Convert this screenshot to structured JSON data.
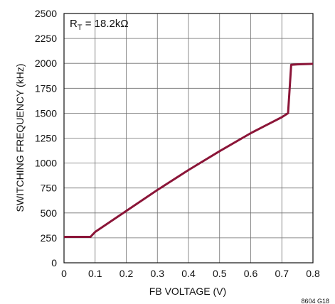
{
  "chart_data": {
    "type": "line",
    "xlabel": "FB VOLTAGE (V)",
    "ylabel": "SWITCHING FREQUENCY (kHz)",
    "xlim": [
      0,
      0.8
    ],
    "ylim": [
      0,
      2500
    ],
    "x_ticks": [
      "0",
      "0.1",
      "0.2",
      "0.3",
      "0.4",
      "0.5",
      "0.6",
      "0.7",
      "0.8"
    ],
    "y_ticks": [
      "0",
      "250",
      "500",
      "750",
      "1000",
      "1250",
      "1500",
      "1750",
      "2000",
      "2250",
      "2500"
    ],
    "grid": true,
    "line_color": "#8b1538",
    "annotation": {
      "main": "R",
      "sub": "T",
      "rest": " = 18.2kΩ"
    },
    "figure_id": "8604 G18",
    "series": [
      {
        "x": [
          0,
          0.085,
          0.1,
          0.2,
          0.3,
          0.4,
          0.5,
          0.6,
          0.65,
          0.7,
          0.72,
          0.73,
          0.75,
          0.8
        ],
        "y": [
          260,
          260,
          310,
          520,
          730,
          930,
          1120,
          1300,
          1380,
          1460,
          1500,
          1985,
          1990,
          1995
        ]
      }
    ]
  }
}
